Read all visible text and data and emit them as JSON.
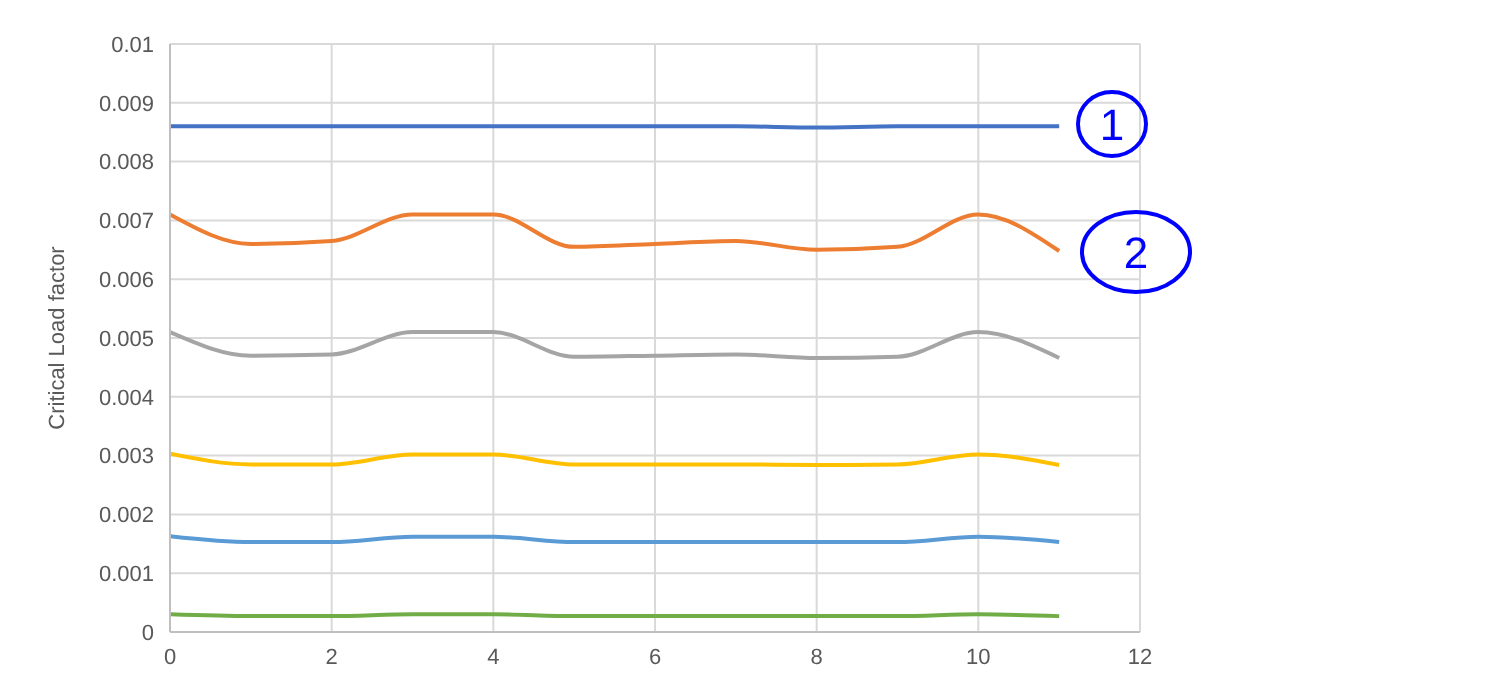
{
  "chart_data": {
    "type": "line",
    "ylabel": "Critical Load factor",
    "x": [
      0,
      1,
      2,
      3,
      4,
      5,
      6,
      7,
      8,
      9,
      10,
      11
    ],
    "series": [
      {
        "color": "#4472c4",
        "values": [
          0.0086,
          0.0086,
          0.0086,
          0.0086,
          0.0086,
          0.0086,
          0.0086,
          0.0086,
          0.00858,
          0.0086,
          0.0086,
          0.0086
        ]
      },
      {
        "color": "#ed7d31",
        "values": [
          0.0071,
          0.0066,
          0.00665,
          0.0071,
          0.0071,
          0.00655,
          0.0066,
          0.00665,
          0.0065,
          0.00655,
          0.0071,
          0.00648
        ]
      },
      {
        "color": "#a5a5a5",
        "values": [
          0.0051,
          0.0047,
          0.00472,
          0.0051,
          0.0051,
          0.00468,
          0.0047,
          0.00472,
          0.00466,
          0.00468,
          0.0051,
          0.00466
        ]
      },
      {
        "color": "#ffc000",
        "values": [
          0.00303,
          0.00285,
          0.00285,
          0.00302,
          0.00302,
          0.00285,
          0.00285,
          0.00285,
          0.00284,
          0.00285,
          0.00302,
          0.00284
        ]
      },
      {
        "color": "#5b9bd5",
        "values": [
          0.00163,
          0.00153,
          0.00153,
          0.00162,
          0.00162,
          0.00153,
          0.00153,
          0.00153,
          0.00153,
          0.00153,
          0.00162,
          0.00153
        ]
      },
      {
        "color": "#70ad47",
        "values": [
          0.0003,
          0.00027,
          0.00027,
          0.0003,
          0.0003,
          0.00027,
          0.00027,
          0.00027,
          0.00027,
          0.00027,
          0.0003,
          0.00027
        ]
      }
    ],
    "xlim": [
      0,
      12
    ],
    "xticks": [
      0,
      2,
      4,
      6,
      8,
      10,
      12
    ],
    "ylim": [
      0,
      0.01
    ],
    "yticks": [
      0,
      0.001,
      0.002,
      0.003,
      0.004,
      0.005,
      0.006,
      0.007,
      0.008,
      0.009,
      0.01
    ],
    "grid": true,
    "legend": false,
    "marker": "none",
    "line_style": "solid",
    "annotations": [
      "1",
      "2"
    ]
  }
}
